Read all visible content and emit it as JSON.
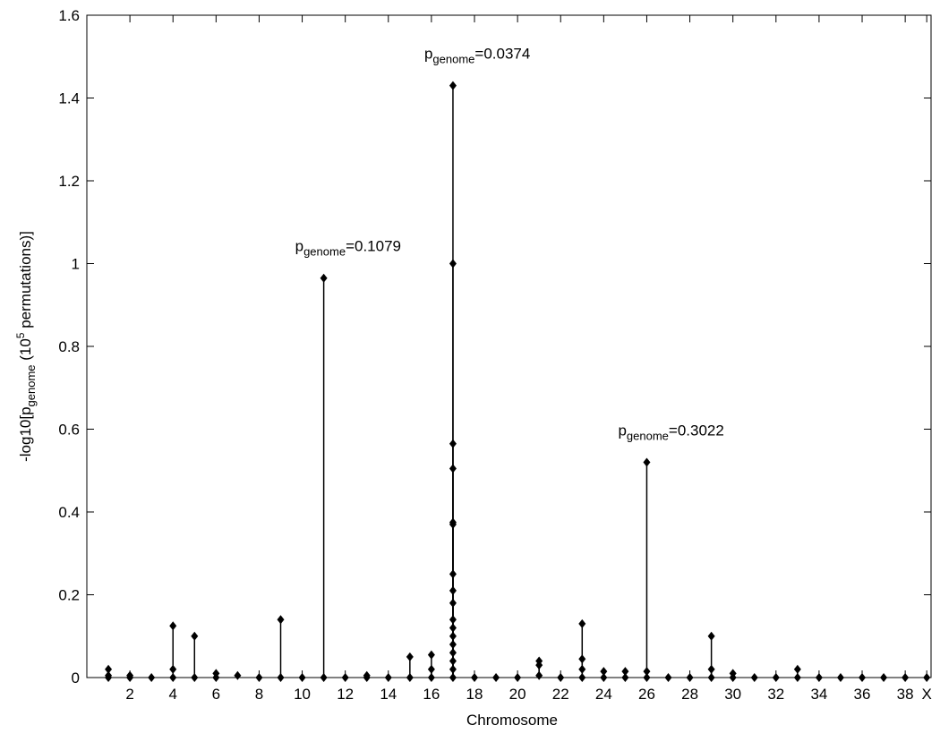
{
  "chart_data": {
    "type": "stem",
    "x_label": "Chromosome",
    "y_label": {
      "pre": "-log10[p",
      "sub": "genome",
      "mid": " (10",
      "sup": "5",
      "post": " permutations)]"
    },
    "annotations": [
      {
        "p": "p",
        "sub": "genome",
        "text": "=0.0374"
      },
      {
        "p": "p",
        "sub": "genome",
        "text": "=0.1079"
      },
      {
        "p": "p",
        "sub": "genome",
        "text": "=0.3022"
      }
    ],
    "x": [
      1,
      1,
      1,
      2,
      2,
      3,
      4,
      4,
      4,
      5,
      5,
      6,
      6,
      7,
      8,
      9,
      9,
      10,
      11,
      11,
      12,
      13,
      13,
      14,
      15,
      15,
      16,
      16,
      16,
      17,
      17,
      17,
      17,
      17,
      17,
      17,
      17,
      17,
      17,
      17,
      17,
      17,
      17,
      17,
      17,
      17,
      18,
      19,
      20,
      21,
      21,
      21,
      22,
      23,
      23,
      23,
      23,
      24,
      24,
      25,
      25,
      26,
      26,
      26,
      27,
      28,
      29,
      29,
      29,
      30,
      30,
      31,
      32,
      33,
      33,
      34,
      35,
      36,
      37,
      38,
      39
    ],
    "values": [
      0.02,
      0.005,
      0,
      0.005,
      0,
      0,
      0.125,
      0.02,
      0,
      0.1,
      0,
      0.01,
      0,
      0.005,
      0,
      0.14,
      0,
      0,
      0.965,
      0,
      0,
      0.005,
      0,
      0,
      0.05,
      0,
      0.055,
      0.02,
      0,
      1.43,
      1.0,
      0.565,
      0.505,
      0.375,
      0.37,
      0.25,
      0.21,
      0.18,
      0.14,
      0.12,
      0.1,
      0.08,
      0.06,
      0.04,
      0.02,
      0,
      0,
      0,
      0,
      0.04,
      0.03,
      0.005,
      0,
      0.13,
      0.045,
      0.02,
      0,
      0.015,
      0,
      0.015,
      0,
      0.52,
      0.015,
      0,
      0,
      0,
      0.1,
      0.02,
      0,
      0.01,
      0,
      0,
      0,
      0.02,
      0,
      0,
      0,
      0,
      0,
      0,
      0
    ],
    "color": "#000000",
    "xlim": [
      0,
      39.2
    ],
    "xticks": [
      2,
      4,
      6,
      8,
      10,
      12,
      14,
      16,
      18,
      20,
      22,
      24,
      26,
      28,
      30,
      32,
      34,
      36,
      38,
      {
        "value": 39,
        "label": "X"
      }
    ],
    "ylim": [
      0,
      1.6
    ],
    "yticks": [
      0,
      0.2,
      0.4,
      0.6,
      0.8,
      1,
      1.2,
      1.4,
      1.6
    ]
  }
}
